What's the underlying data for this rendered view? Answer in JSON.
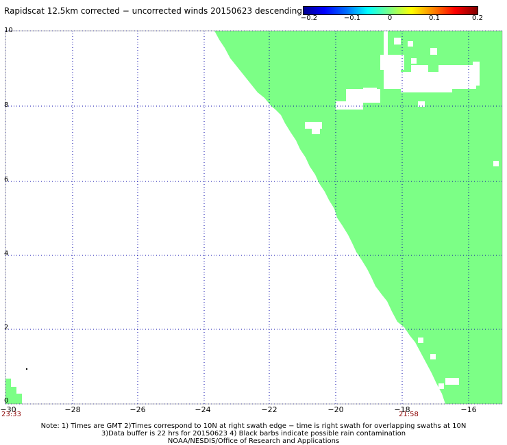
{
  "title": "Rapidscat 12.5km corrected − uncorrected winds 20150623 descending",
  "colorbar": {
    "labels": [
      "−0.2",
      "−0.1",
      "0",
      "0.1",
      "0.2"
    ],
    "values": [
      -0.2,
      -0.1,
      0,
      0.1,
      0.2
    ],
    "colors": [
      "#00008f",
      "#0000ff",
      "#00ffff",
      "#80ff80",
      "#ffff00",
      "#ff8000",
      "#ff0000",
      "#800000"
    ]
  },
  "map": {
    "lon_range": [
      -30,
      -15
    ],
    "lat_range": [
      0,
      10
    ],
    "x_ticks": [
      "−30",
      "−28",
      "−26",
      "−24",
      "−22",
      "−20",
      "−18",
      "−16"
    ],
    "x_tick_values": [
      -30,
      -28,
      -26,
      -24,
      -22,
      -20,
      -18,
      -16
    ],
    "y_ticks": [
      "0",
      "2",
      "4",
      "6",
      "8",
      "10"
    ],
    "y_tick_values": [
      0,
      2,
      4,
      6,
      8,
      10
    ],
    "grid": "dotted blue",
    "swath_color": "#7cff86"
  },
  "times": {
    "left": "23:33",
    "right": "21:58"
  },
  "notes": {
    "line1": "Note: 1) Times are GMT 2)Times correspond to 10N at right swath edge − time is right swath for overlapping swaths at 10N",
    "line2": "3)Data buffer is 22 hrs for 20150623 4) Black barbs indicate possible rain contamination",
    "line3": "NOAA/NESDIS/Office of Research and Applications"
  }
}
